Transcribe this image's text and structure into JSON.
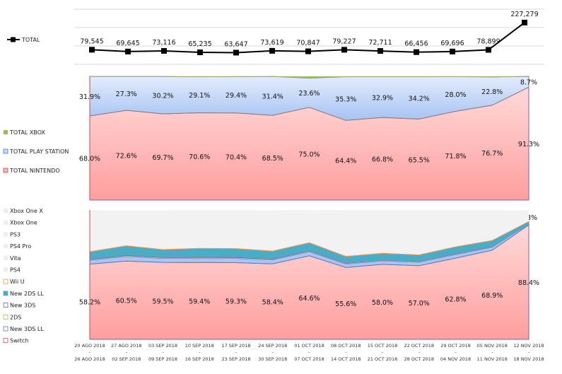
{
  "chart_data": [
    {
      "type": "line",
      "categories_start": [
        "20 AGO 2018",
        "27 AGO 2018",
        "03 SEP 2018",
        "10 SEP 2018",
        "17 SEP 2018",
        "24 SEP 2018",
        "01 OCT 2018",
        "08 OCT 2018",
        "15 OCT 2018",
        "22 OCT 2018",
        "29 OCT 2018",
        "05 NOV 2018",
        "12 NOV 2018"
      ],
      "categories_end": [
        "26 AGO 2018",
        "02 SEP 2018",
        "09 SEP 2018",
        "16 SEP 2018",
        "23 SEP 2018",
        "30 SEP 2018",
        "07 OCT 2018",
        "14 OCT 2018",
        "21 OCT 2018",
        "28 OCT 2018",
        "04 NOV 2018",
        "11 NOV 2018",
        "18 NOV 2018"
      ],
      "separator": "-",
      "series": [
        {
          "name": "TOTAL",
          "values": [
            79545,
            69645,
            73116,
            65235,
            63647,
            73619,
            70847,
            79227,
            72711,
            66456,
            69696,
            78899,
            227279
          ],
          "labels": [
            "79,545",
            "69,645",
            "73,116",
            "65,235",
            "63,647",
            "73,619",
            "70,847",
            "79,227",
            "72,711",
            "66,456",
            "69,696",
            "78,899",
            "227,279"
          ],
          "color": "#000000"
        }
      ],
      "ylim": [
        0,
        300000
      ],
      "grid": true,
      "legend": "left"
    },
    {
      "type": "area",
      "stacked_percent": true,
      "series": [
        {
          "name": "TOTAL NINTENDO",
          "values": [
            68.0,
            72.6,
            69.7,
            70.6,
            70.4,
            68.5,
            75.0,
            64.4,
            66.8,
            65.5,
            71.8,
            76.7,
            91.3
          ],
          "labels": [
            "68.0%",
            "72.6%",
            "69.7%",
            "70.6%",
            "70.4%",
            "68.5%",
            "75.0%",
            "64.4%",
            "66.8%",
            "65.5%",
            "71.8%",
            "76.7%",
            "91.3%"
          ],
          "color": "#ffb3b3"
        },
        {
          "name": "TOTAL PLAY STATION",
          "values": [
            31.9,
            27.3,
            30.2,
            29.1,
            29.4,
            31.4,
            23.6,
            35.3,
            32.9,
            34.2,
            28.0,
            22.8,
            8.7
          ],
          "labels": [
            "31.9%",
            "27.3%",
            "30.2%",
            "29.1%",
            "29.4%",
            "31.4%",
            "23.6%",
            "35.3%",
            "32.9%",
            "34.2%",
            "28.0%",
            "22.8%",
            "8.7%"
          ],
          "color": "#c5d9f7"
        },
        {
          "name": "TOTAL XBOX",
          "values": [
            0.1,
            0.1,
            0.1,
            0.3,
            0.2,
            0.1,
            1.4,
            0.3,
            0.3,
            0.3,
            0.2,
            0.5,
            0.0
          ],
          "color": "#9bbb59"
        }
      ],
      "ylim": [
        0,
        100
      ],
      "legend": "left"
    },
    {
      "type": "area",
      "stacked_percent": true,
      "series": [
        {
          "name": "Switch",
          "values": [
            58.2,
            60.5,
            59.5,
            59.4,
            59.3,
            58.4,
            64.6,
            55.6,
            58.0,
            57.0,
            62.8,
            68.9,
            88.4
          ],
          "labels": [
            "58.2%",
            "60.5%",
            "59.5%",
            "59.4%",
            "59.3%",
            "58.4%",
            "64.6%",
            "55.6%",
            "58.0%",
            "57.0%",
            "62.8%",
            "68.9%",
            "88.4%"
          ],
          "color": "#ffc7c7"
        },
        {
          "name": "New 3DS LL",
          "values": [
            2.9,
            3.6,
            3.1,
            3.4,
            3.3,
            3.0,
            3.1,
            2.6,
            2.6,
            2.6,
            2.7,
            2.3,
            0.7
          ],
          "color": "#a9c4f5"
        },
        {
          "name": "2DS",
          "values": [
            0.3,
            0.4,
            0.3,
            0.3,
            0.3,
            0.3,
            0.3,
            0.3,
            0.3,
            0.3,
            0.3,
            0.2,
            0.1
          ],
          "color": "#c3d69b"
        },
        {
          "name": "New 3DS",
          "values": [
            0.7,
            0.8,
            0.7,
            0.8,
            0.8,
            0.7,
            0.7,
            0.6,
            0.6,
            0.6,
            0.6,
            0.5,
            0.2
          ],
          "color": "#8064a2"
        },
        {
          "name": "New 2DS LL",
          "values": [
            5.6,
            7.0,
            5.8,
            6.4,
            6.4,
            5.8,
            6.0,
            5.0,
            5.0,
            4.7,
            5.1,
            4.5,
            1.8
          ],
          "labels": [
            "",
            "",
            "",
            "",
            "",
            "",
            "",
            "",
            "",
            "",
            "",
            "",
            "1.8%"
          ],
          "color": "#4bacc6"
        },
        {
          "name": "Wii U",
          "values": [
            0.3,
            0.3,
            0.3,
            0.3,
            0.3,
            0.3,
            0.3,
            0.3,
            0.3,
            0.3,
            0.3,
            0.3,
            0.1
          ],
          "color": "#f79646"
        },
        {
          "name": "PS4",
          "values": [
            30.9,
            26.3,
            29.2,
            28.1,
            28.4,
            30.4,
            22.6,
            34.3,
            31.9,
            33.2,
            27.0,
            21.8,
            8.4
          ],
          "color": "#f2f2f2"
        },
        {
          "name": "Vita",
          "values": [
            0.1,
            0.1,
            0.1,
            0.1,
            0.1,
            0.1,
            0.1,
            0.1,
            0.1,
            0.1,
            0.1,
            0.1,
            0.1
          ],
          "color": "#f2f2f2"
        },
        {
          "name": "PS4 Pro",
          "values": [
            0.8,
            0.8,
            0.8,
            0.8,
            0.8,
            0.8,
            0.8,
            0.8,
            0.8,
            0.8,
            0.8,
            0.8,
            0.2
          ],
          "color": "#f2f2f2"
        },
        {
          "name": "PS3",
          "values": [
            0.1,
            0.1,
            0.1,
            0.1,
            0.1,
            0.1,
            0.1,
            0.1,
            0.1,
            0.1,
            0.1,
            0.1,
            0.0
          ],
          "color": "#f2f2f2"
        },
        {
          "name": "Xbox One",
          "values": [
            0.1,
            0.1,
            0.1,
            0.3,
            0.2,
            0.1,
            1.4,
            0.3,
            0.3,
            0.3,
            0.2,
            0.5,
            0.0
          ],
          "color": "#f2f2f2"
        },
        {
          "name": "Xbox One X",
          "values": [
            0,
            0,
            0,
            0,
            0,
            0,
            0,
            0,
            0,
            0,
            0,
            0,
            0
          ],
          "color": "#f2f2f2"
        }
      ],
      "ylim": [
        0,
        100
      ],
      "legend": "left"
    }
  ]
}
